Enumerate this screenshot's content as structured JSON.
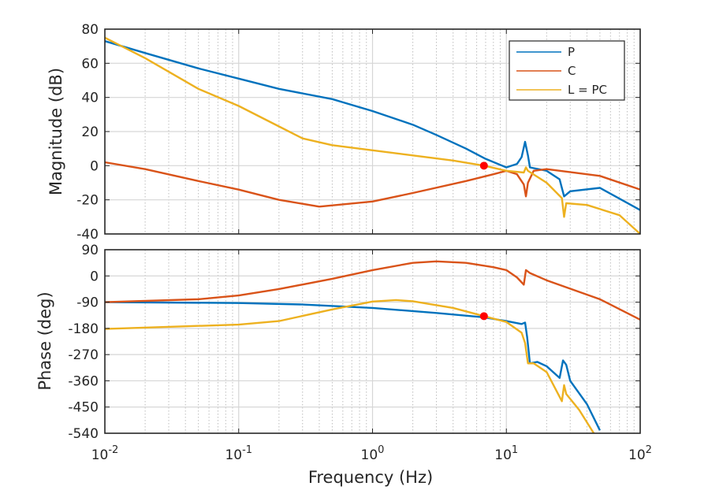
{
  "chart_data": [
    {
      "type": "line",
      "panel": "magnitude",
      "xlabel": "",
      "ylabel": "Magnitude (dB)",
      "xscale": "log",
      "xlim": [
        0.01,
        100
      ],
      "ylim": [
        -40,
        80
      ],
      "yticks": [
        "80",
        "60",
        "40",
        "20",
        "0",
        "-20",
        "-40"
      ],
      "grid": true,
      "legend": {
        "placement": "top-right",
        "entries": [
          "P",
          "C",
          "L = PC"
        ]
      },
      "series": [
        {
          "name": "P",
          "color": "#0072BD",
          "points": [
            [
              0.01,
              73
            ],
            [
              0.02,
              66
            ],
            [
              0.05,
              57
            ],
            [
              0.1,
              51
            ],
            [
              0.2,
              45
            ],
            [
              0.5,
              39
            ],
            [
              1,
              32
            ],
            [
              2,
              24
            ],
            [
              3,
              18
            ],
            [
              5,
              10
            ],
            [
              7,
              4
            ],
            [
              10,
              -1
            ],
            [
              12,
              1
            ],
            [
              13,
              5
            ],
            [
              13.8,
              14
            ],
            [
              14.5,
              6
            ],
            [
              15,
              -1
            ],
            [
              20,
              -3
            ],
            [
              25,
              -8
            ],
            [
              27,
              -18
            ],
            [
              30,
              -15
            ],
            [
              50,
              -13
            ],
            [
              100,
              -26
            ]
          ]
        },
        {
          "name": "C",
          "color": "#D95319",
          "points": [
            [
              0.01,
              2
            ],
            [
              0.02,
              -2
            ],
            [
              0.05,
              -9
            ],
            [
              0.1,
              -14
            ],
            [
              0.2,
              -20
            ],
            [
              0.4,
              -24
            ],
            [
              1,
              -21
            ],
            [
              2,
              -16
            ],
            [
              5,
              -9
            ],
            [
              8,
              -5
            ],
            [
              10,
              -3
            ],
            [
              12,
              -5
            ],
            [
              13.5,
              -11
            ],
            [
              14,
              -18
            ],
            [
              14.5,
              -10
            ],
            [
              16,
              -3
            ],
            [
              20,
              -2
            ],
            [
              50,
              -6
            ],
            [
              100,
              -14
            ]
          ]
        },
        {
          "name": "L = PC",
          "color": "#EDB120",
          "points": [
            [
              0.01,
              75
            ],
            [
              0.02,
              63
            ],
            [
              0.05,
              45
            ],
            [
              0.1,
              35
            ],
            [
              0.2,
              23
            ],
            [
              0.3,
              16
            ],
            [
              0.5,
              12
            ],
            [
              1,
              9
            ],
            [
              2,
              6
            ],
            [
              4,
              3
            ],
            [
              6.8,
              0
            ],
            [
              10,
              -3
            ],
            [
              13.5,
              -4
            ],
            [
              14,
              -1
            ],
            [
              14.5,
              -3
            ],
            [
              20,
              -10
            ],
            [
              26,
              -19
            ],
            [
              27,
              -30
            ],
            [
              28,
              -22
            ],
            [
              40,
              -23
            ],
            [
              70,
              -29
            ],
            [
              100,
              -40
            ]
          ]
        }
      ],
      "marker": {
        "x": 6.8,
        "y": 0,
        "color": "#FF0000"
      }
    },
    {
      "type": "line",
      "panel": "phase",
      "xlabel": "Frequency  (Hz)",
      "ylabel": "Phase (deg)",
      "xscale": "log",
      "xlim": [
        0.01,
        100
      ],
      "ylim": [
        -540,
        90
      ],
      "yticks": [
        "90",
        "0",
        "-90",
        "-180",
        "-270",
        "-360",
        "-450",
        "-540"
      ],
      "xticks": [
        {
          "base": "10",
          "exp": "-2"
        },
        {
          "base": "10",
          "exp": "-1"
        },
        {
          "base": "10",
          "exp": "0"
        },
        {
          "base": "10",
          "exp": "1"
        },
        {
          "base": "10",
          "exp": "2"
        }
      ],
      "grid": true,
      "series": [
        {
          "name": "P",
          "color": "#0072BD",
          "points": [
            [
              0.01,
              -90
            ],
            [
              0.1,
              -93
            ],
            [
              0.3,
              -98
            ],
            [
              1,
              -110
            ],
            [
              3,
              -127
            ],
            [
              6.8,
              -142
            ],
            [
              10,
              -155
            ],
            [
              13,
              -165
            ],
            [
              13.8,
              -160
            ],
            [
              14.3,
              -210
            ],
            [
              15,
              -300
            ],
            [
              17,
              -295
            ],
            [
              20,
              -310
            ],
            [
              25,
              -350
            ],
            [
              26.5,
              -290
            ],
            [
              28,
              -305
            ],
            [
              30,
              -360
            ],
            [
              40,
              -440
            ],
            [
              50,
              -530
            ]
          ]
        },
        {
          "name": "C",
          "color": "#D95319",
          "points": [
            [
              0.01,
              -90
            ],
            [
              0.05,
              -80
            ],
            [
              0.1,
              -67
            ],
            [
              0.2,
              -45
            ],
            [
              0.5,
              -10
            ],
            [
              1,
              20
            ],
            [
              2,
              45
            ],
            [
              3,
              50
            ],
            [
              5,
              45
            ],
            [
              8,
              30
            ],
            [
              10,
              20
            ],
            [
              12,
              -5
            ],
            [
              13.5,
              -30
            ],
            [
              14,
              20
            ],
            [
              15,
              10
            ],
            [
              20,
              -15
            ],
            [
              50,
              -80
            ],
            [
              100,
              -150
            ]
          ]
        },
        {
          "name": "L = PC",
          "color": "#EDB120",
          "points": [
            [
              0.01,
              -182
            ],
            [
              0.1,
              -167
            ],
            [
              0.2,
              -155
            ],
            [
              0.5,
              -115
            ],
            [
              1,
              -88
            ],
            [
              1.5,
              -83
            ],
            [
              2,
              -87
            ],
            [
              4,
              -110
            ],
            [
              6.8,
              -138
            ],
            [
              10,
              -158
            ],
            [
              13,
              -195
            ],
            [
              13.8,
              -230
            ],
            [
              14.5,
              -300
            ],
            [
              16,
              -300
            ],
            [
              20,
              -330
            ],
            [
              26,
              -430
            ],
            [
              27,
              -375
            ],
            [
              28,
              -405
            ],
            [
              35,
              -460
            ],
            [
              45,
              -540
            ]
          ]
        }
      ],
      "marker": {
        "x": 6.8,
        "y": -138,
        "color": "#FF0000"
      }
    }
  ]
}
